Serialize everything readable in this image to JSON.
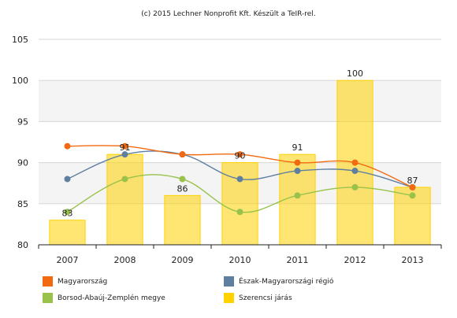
{
  "credit": "(c) 2015 Lechner Nonprofit Kft. Készült a TeIR-rel.",
  "chart_data": {
    "type": "bar",
    "categories": [
      "2007",
      "2008",
      "2009",
      "2010",
      "2011",
      "2012",
      "2013"
    ],
    "ylim": [
      80,
      105
    ],
    "yticks": [
      80,
      85,
      90,
      95,
      100,
      105
    ],
    "grid": true,
    "legend_position": "bottom",
    "bar_series": {
      "name": "Szerencsi járás",
      "color": "#ffd200",
      "values": [
        83,
        91,
        86,
        90,
        91,
        100,
        87
      ],
      "labels": [
        "83",
        "91",
        "86",
        "90",
        "91",
        "100",
        "87"
      ]
    },
    "line_series": [
      {
        "name": "Magyarország",
        "color": "#f26a10",
        "values": [
          92,
          92,
          91,
          91,
          90,
          90,
          87
        ]
      },
      {
        "name": "Észak-Magyarországi régió",
        "color": "#5f7fa1",
        "values": [
          88,
          91,
          91,
          88,
          89,
          89,
          87
        ]
      },
      {
        "name": "Borsod-Abaúj-Zemplén megye",
        "color": "#98c24a",
        "values": [
          84,
          88,
          88,
          84,
          86,
          87,
          86
        ]
      }
    ]
  },
  "legend": [
    {
      "label": "Magyarország",
      "color": "#f26a10"
    },
    {
      "label": "Észak-Magyarországi régió",
      "color": "#5f7fa1"
    },
    {
      "label": "Borsod-Abaúj-Zemplén megye",
      "color": "#98c24a"
    },
    {
      "label": "Szerencsi járás",
      "color": "#ffd200"
    }
  ]
}
